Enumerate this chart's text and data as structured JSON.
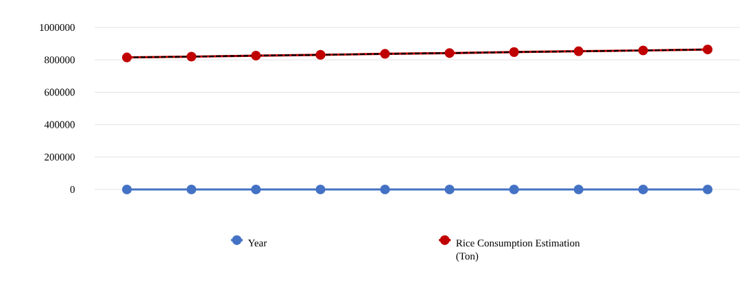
{
  "chart_data": {
    "type": "line",
    "categories": [
      null,
      null,
      null,
      null,
      null,
      null,
      null,
      null,
      null,
      null
    ],
    "series": [
      {
        "name": "Year",
        "color": "#4472c4",
        "values": [
          0,
          0,
          0,
          0,
          0,
          0,
          0,
          0,
          0,
          0
        ]
      },
      {
        "name": "Rice Consumption Estimation (Ton)",
        "color": "#c00000",
        "values": [
          815000,
          820000,
          826000,
          831000,
          837000,
          842000,
          848000,
          853000,
          858000,
          864000
        ]
      },
      {
        "type": "line",
        "color": "#000000",
        "values": [
          815000,
          820000,
          826000,
          831000,
          837000,
          842000,
          848000,
          853000,
          858000,
          864000
        ],
        "line_style": "dashed",
        "marker": "none"
      }
    ],
    "ylim": [
      0,
      1000000
    ],
    "yticks": [
      0,
      200000,
      400000,
      600000,
      800000,
      1000000
    ],
    "grid": "y",
    "legend": "bottom",
    "marker": "circle",
    "line_style": "solid",
    "tick_labels": "y"
  }
}
